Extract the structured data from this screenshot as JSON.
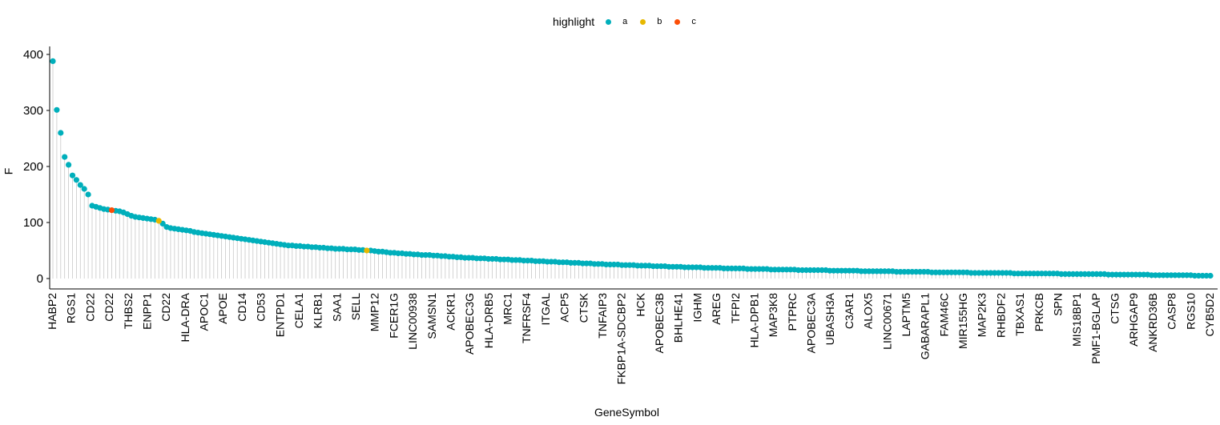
{
  "legend": {
    "title": "highlight",
    "items": [
      {
        "label": "a",
        "color": "#00AFBB"
      },
      {
        "label": "b",
        "color": "#E7B800"
      },
      {
        "label": "c",
        "color": "#FC4E07"
      }
    ]
  },
  "chart_data": {
    "type": "lollipop",
    "xlabel": "GeneSymbol",
    "ylabel": "F",
    "ylim": [
      0,
      400
    ],
    "yticks": [
      0,
      100,
      200,
      300,
      400
    ],
    "grid": false,
    "legend_position": "top",
    "colors": {
      "a": "#00AFBB",
      "b": "#E7B800",
      "c": "#FC4E07",
      "segment": "#C8C8C8"
    },
    "highlight_points": [
      {
        "index": 15,
        "group": "c"
      },
      {
        "index": 27,
        "group": "b"
      },
      {
        "index": 80,
        "group": "b"
      }
    ],
    "visible_labels": [
      "HABP2",
      "RGS1",
      "CD22",
      "CD22",
      "THBS2",
      "ENPP1",
      "CD22",
      "HLA-DRA",
      "APOC1",
      "APOE",
      "CD14",
      "CD53",
      "ENTPD1",
      "CELA1",
      "KLRB1",
      "SAA1",
      "SELL",
      "MMP12",
      "FCER1G",
      "LINC00938",
      "SAMSN1",
      "ACKR1",
      "APOBEC3G",
      "HLA-DRB5",
      "MRC1",
      "TNFRSF4",
      "ITGAL",
      "ACP5",
      "CTSK",
      "TNFAIP3",
      "FKBP1A-SDCBP2",
      "HCK",
      "APOBEC3B",
      "BHLHE41",
      "IGHM",
      "AREG",
      "TFPI2",
      "HLA-DPB1",
      "MAP3K8",
      "PTPRC",
      "APOBEC3A",
      "UBASH3A",
      "C3AR1",
      "ALOX5",
      "LINC00671",
      "LAPTM5",
      "GABARAPL1",
      "FAM46C",
      "MIR155HG",
      "MAP2K3",
      "RHBDF2",
      "TBXAS1",
      "PRKCB",
      "SPN",
      "MIS18BP1",
      "PMF1-BGLAP",
      "CTSG",
      "ARHGAP9",
      "ANKRD36B",
      "CASP8",
      "RGS10",
      "CYB5D2"
    ],
    "values": [
      388,
      301,
      260,
      217,
      203,
      184,
      176,
      167,
      160,
      150,
      130,
      128,
      126,
      124,
      123,
      122,
      121,
      120,
      118,
      115,
      112,
      110,
      109,
      108,
      107,
      106,
      105,
      103,
      98,
      92,
      90,
      89,
      88,
      87,
      86,
      85,
      83,
      82,
      81,
      80,
      79,
      78,
      77,
      76,
      75,
      74,
      73,
      72,
      71,
      70,
      69,
      68,
      67,
      66,
      65,
      64,
      63,
      62,
      61,
      60,
      59,
      59,
      58,
      58,
      57,
      57,
      56,
      56,
      55,
      55,
      54,
      54,
      53,
      53,
      53,
      52,
      52,
      52,
      51,
      51,
      50,
      50,
      49,
      48,
      48,
      47,
      46,
      46,
      45,
      45,
      44,
      44,
      43,
      43,
      42,
      42,
      42,
      41,
      41,
      40,
      40,
      39,
      39,
      38,
      38,
      37,
      37,
      37,
      36,
      36,
      36,
      35,
      35,
      35,
      34,
      34,
      34,
      33,
      33,
      33,
      32,
      32,
      32,
      31,
      31,
      31,
      30,
      30,
      30,
      29,
      29,
      29,
      28,
      28,
      28,
      27,
      27,
      27,
      26,
      26,
      26,
      25,
      25,
      25,
      25,
      24,
      24,
      24,
      24,
      23,
      23,
      23,
      23,
      22,
      22,
      22,
      22,
      21,
      21,
      21,
      21,
      20,
      20,
      20,
      20,
      20,
      19,
      19,
      19,
      19,
      19,
      18,
      18,
      18,
      18,
      18,
      18,
      17,
      17,
      17,
      17,
      17,
      17,
      16,
      16,
      16,
      16,
      16,
      16,
      16,
      15,
      15,
      15,
      15,
      15,
      15,
      15,
      15,
      14,
      14,
      14,
      14,
      14,
      14,
      14,
      14,
      13,
      13,
      13,
      13,
      13,
      13,
      13,
      13,
      13,
      12,
      12,
      12,
      12,
      12,
      12,
      12,
      12,
      12,
      11,
      11,
      11,
      11,
      11,
      11,
      11,
      11,
      11,
      11,
      10,
      10,
      10,
      10,
      10,
      10,
      10,
      10,
      10,
      10,
      10,
      9,
      9,
      9,
      9,
      9,
      9,
      9,
      9,
      9,
      9,
      9,
      9,
      8,
      8,
      8,
      8,
      8,
      8,
      8,
      8,
      8,
      8,
      8,
      8,
      7,
      7,
      7,
      7,
      7,
      7,
      7,
      7,
      7,
      7,
      7,
      6,
      6,
      6,
      6,
      6,
      6,
      6,
      6,
      6,
      6,
      6,
      5,
      5,
      5,
      5,
      5
    ]
  }
}
